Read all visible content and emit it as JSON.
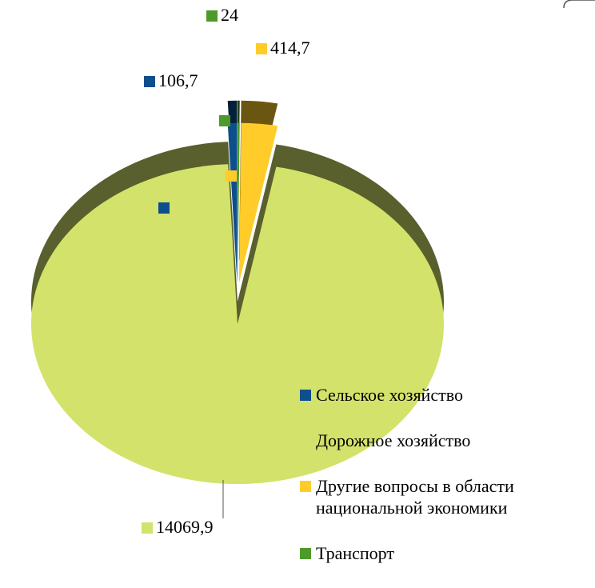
{
  "chart_data": {
    "type": "pie",
    "categories": [
      "Сельское хозяйство",
      "Дорожное хозяйство",
      "Другие вопросы в области национальной экономики",
      "Транспорт"
    ],
    "values": [
      106.7,
      14069.9,
      414.7,
      24
    ],
    "value_labels": [
      "106,7",
      "14069,9",
      "414,7",
      "24"
    ],
    "colors": [
      "#0d4f8b",
      "#d3e26a",
      "#ffcc29",
      "#4d9a2a"
    ],
    "legend": "right"
  }
}
